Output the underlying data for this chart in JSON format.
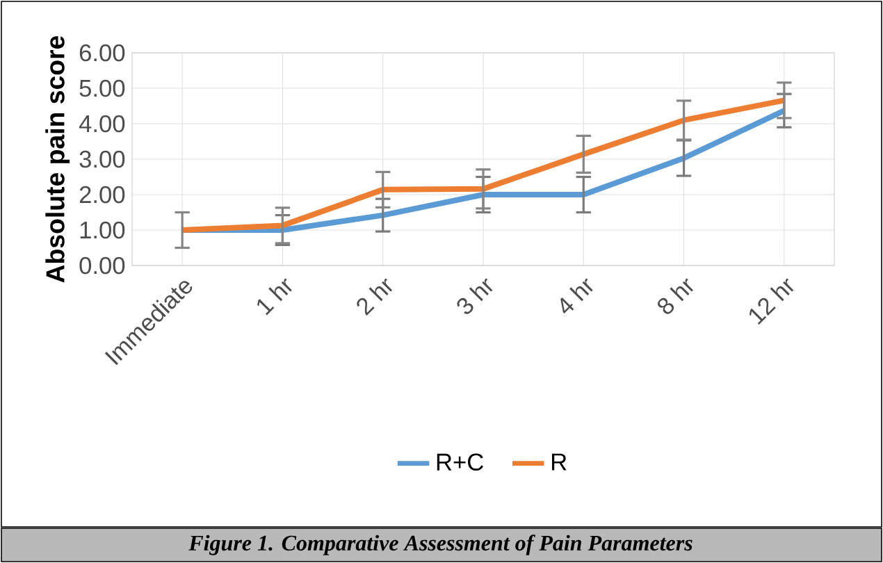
{
  "chart_data": {
    "type": "line",
    "ylabel": "Absolute pain score",
    "categories": [
      "Immediate",
      "1 hr",
      "2 hr",
      "3 hr",
      "4 hr",
      "8 hr",
      "12 hr"
    ],
    "series": [
      {
        "name": "R+C",
        "color": "#5b9bd5",
        "values": [
          1.0,
          1.0,
          1.42,
          2.0,
          2.0,
          3.03,
          4.37
        ],
        "errors": [
          null,
          0.42,
          0.46,
          0.5,
          0.5,
          0.5,
          0.47
        ]
      },
      {
        "name": "R",
        "color": "#ed7d31",
        "values": [
          1.0,
          1.13,
          2.14,
          2.16,
          3.14,
          4.1,
          4.66
        ],
        "errors": [
          0.5,
          0.5,
          0.5,
          0.55,
          0.52,
          0.55,
          0.5
        ]
      }
    ],
    "ylim": [
      0,
      6
    ],
    "yticks": [
      {
        "value": 0,
        "label": "0.00"
      },
      {
        "value": 1,
        "label": "1.00"
      },
      {
        "value": 2,
        "label": "2.00"
      },
      {
        "value": 3,
        "label": "3.00"
      },
      {
        "value": 4,
        "label": "4.00"
      },
      {
        "value": 5,
        "label": "5.00"
      },
      {
        "value": 6,
        "label": "6.00"
      }
    ],
    "grid": true,
    "legend": "bottom",
    "marker": "none",
    "line_style": "solid",
    "annotations": [
      "*Figure 1. Comparative Assessment of Pain Parameters*"
    ]
  }
}
